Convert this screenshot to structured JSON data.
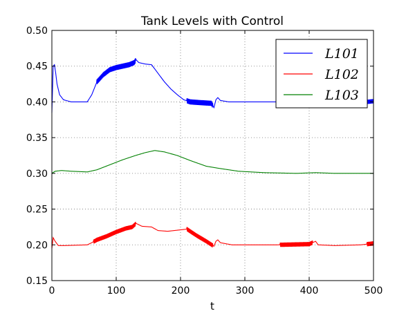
{
  "chart_data": {
    "type": "line",
    "title": "Tank Levels with Control",
    "xlabel": "t",
    "ylabel": "",
    "xlim": [
      0,
      500
    ],
    "ylim": [
      0.15,
      0.5
    ],
    "xticks": [
      "0",
      "100",
      "200",
      "300",
      "400",
      "500"
    ],
    "yticks": [
      "0.15",
      "0.20",
      "0.25",
      "0.30",
      "0.35",
      "0.40",
      "0.45",
      "0.50"
    ],
    "grid": true,
    "legend_position": "top-right",
    "series": [
      {
        "name": "L101",
        "color": "#0000ff",
        "points": [
          [
            0,
            0.385
          ],
          [
            2,
            0.45
          ],
          [
            4,
            0.452
          ],
          [
            6,
            0.44
          ],
          [
            8,
            0.425
          ],
          [
            12,
            0.41
          ],
          [
            18,
            0.403
          ],
          [
            30,
            0.4
          ],
          [
            55,
            0.4
          ],
          [
            62,
            0.41
          ],
          [
            70,
            0.428
          ],
          [
            80,
            0.438
          ],
          [
            90,
            0.445
          ],
          [
            100,
            0.448
          ],
          [
            110,
            0.45
          ],
          [
            120,
            0.452
          ],
          [
            128,
            0.455
          ],
          [
            131,
            0.459
          ],
          [
            135,
            0.455
          ],
          [
            145,
            0.453
          ],
          [
            155,
            0.452
          ],
          [
            165,
            0.44
          ],
          [
            175,
            0.428
          ],
          [
            185,
            0.418
          ],
          [
            195,
            0.41
          ],
          [
            205,
            0.403
          ],
          [
            215,
            0.4
          ],
          [
            230,
            0.399
          ],
          [
            248,
            0.398
          ],
          [
            252,
            0.392
          ],
          [
            255,
            0.403
          ],
          [
            258,
            0.406
          ],
          [
            262,
            0.402
          ],
          [
            275,
            0.4
          ],
          [
            300,
            0.4
          ],
          [
            350,
            0.4
          ],
          [
            400,
            0.401
          ],
          [
            420,
            0.402
          ],
          [
            440,
            0.401
          ],
          [
            470,
            0.4
          ],
          [
            490,
            0.4
          ],
          [
            500,
            0.401
          ]
        ],
        "oscillations": [
          [
            70,
            130,
            0.006
          ],
          [
            210,
            250,
            0.006
          ],
          [
            490,
            500,
            0.005
          ]
        ]
      },
      {
        "name": "L102",
        "color": "#ff0000",
        "points": [
          [
            0,
            0.195
          ],
          [
            2,
            0.21
          ],
          [
            5,
            0.205
          ],
          [
            10,
            0.199
          ],
          [
            20,
            0.199
          ],
          [
            55,
            0.2
          ],
          [
            62,
            0.203
          ],
          [
            70,
            0.207
          ],
          [
            85,
            0.212
          ],
          [
            100,
            0.218
          ],
          [
            115,
            0.223
          ],
          [
            125,
            0.225
          ],
          [
            131,
            0.23
          ],
          [
            140,
            0.226
          ],
          [
            155,
            0.225
          ],
          [
            165,
            0.22
          ],
          [
            180,
            0.219
          ],
          [
            200,
            0.221
          ],
          [
            210,
            0.222
          ],
          [
            225,
            0.213
          ],
          [
            240,
            0.205
          ],
          [
            252,
            0.198
          ],
          [
            255,
            0.205
          ],
          [
            258,
            0.207
          ],
          [
            262,
            0.203
          ],
          [
            280,
            0.2
          ],
          [
            320,
            0.2
          ],
          [
            350,
            0.2
          ],
          [
            400,
            0.201
          ],
          [
            410,
            0.205
          ],
          [
            414,
            0.2
          ],
          [
            440,
            0.199
          ],
          [
            480,
            0.2
          ],
          [
            500,
            0.202
          ]
        ],
        "oscillations": [
          [
            65,
            130,
            0.005
          ],
          [
            210,
            250,
            0.005
          ],
          [
            355,
            405,
            0.005
          ],
          [
            490,
            500,
            0.005
          ]
        ]
      },
      {
        "name": "L103",
        "color": "#008000",
        "points": [
          [
            0,
            0.3
          ],
          [
            5,
            0.303
          ],
          [
            15,
            0.304
          ],
          [
            30,
            0.303
          ],
          [
            55,
            0.302
          ],
          [
            70,
            0.305
          ],
          [
            90,
            0.312
          ],
          [
            110,
            0.319
          ],
          [
            130,
            0.325
          ],
          [
            145,
            0.329
          ],
          [
            160,
            0.332
          ],
          [
            175,
            0.33
          ],
          [
            195,
            0.325
          ],
          [
            215,
            0.318
          ],
          [
            240,
            0.31
          ],
          [
            260,
            0.307
          ],
          [
            290,
            0.303
          ],
          [
            330,
            0.301
          ],
          [
            380,
            0.3
          ],
          [
            410,
            0.301
          ],
          [
            440,
            0.3
          ],
          [
            470,
            0.3
          ],
          [
            500,
            0.3
          ]
        ]
      }
    ]
  }
}
